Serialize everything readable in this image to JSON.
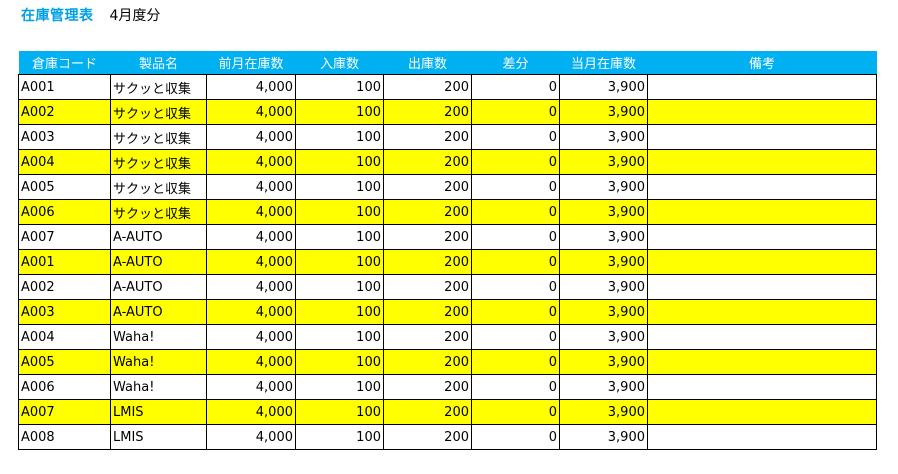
{
  "sheet": {
    "title": "在庫管理表",
    "period": "4月度分"
  },
  "colors": {
    "title": "#00a0e9",
    "header_bg": "#00b0f0",
    "stripe": "#ffff00",
    "grid": "#000000"
  },
  "table": {
    "headers": [
      "倉庫コード",
      "製品名",
      "前月在庫数",
      "入庫数",
      "出庫数",
      "差分",
      "当月在庫数",
      "備考"
    ],
    "rows": [
      [
        "A001",
        "サクッと収集",
        "4,000",
        "100",
        "200",
        "0",
        "3,900",
        ""
      ],
      [
        "A002",
        "サクッと収集",
        "4,000",
        "100",
        "200",
        "0",
        "3,900",
        ""
      ],
      [
        "A003",
        "サクッと収集",
        "4,000",
        "100",
        "200",
        "0",
        "3,900",
        ""
      ],
      [
        "A004",
        "サクッと収集",
        "4,000",
        "100",
        "200",
        "0",
        "3,900",
        ""
      ],
      [
        "A005",
        "サクッと収集",
        "4,000",
        "100",
        "200",
        "0",
        "3,900",
        ""
      ],
      [
        "A006",
        "サクッと収集",
        "4,000",
        "100",
        "200",
        "0",
        "3,900",
        ""
      ],
      [
        "A007",
        "A-AUTO",
        "4,000",
        "100",
        "200",
        "0",
        "3,900",
        ""
      ],
      [
        "A001",
        "A-AUTO",
        "4,000",
        "100",
        "200",
        "0",
        "3,900",
        ""
      ],
      [
        "A002",
        "A-AUTO",
        "4,000",
        "100",
        "200",
        "0",
        "3,900",
        ""
      ],
      [
        "A003",
        "A-AUTO",
        "4,000",
        "100",
        "200",
        "0",
        "3,900",
        ""
      ],
      [
        "A004",
        "Waha!",
        "4,000",
        "100",
        "200",
        "0",
        "3,900",
        ""
      ],
      [
        "A005",
        "Waha!",
        "4,000",
        "100",
        "200",
        "0",
        "3,900",
        ""
      ],
      [
        "A006",
        "Waha!",
        "4,000",
        "100",
        "200",
        "0",
        "3,900",
        ""
      ],
      [
        "A007",
        "LMIS",
        "4,000",
        "100",
        "200",
        "0",
        "3,900",
        ""
      ],
      [
        "A008",
        "LMIS",
        "4,000",
        "100",
        "200",
        "0",
        "3,900",
        ""
      ]
    ]
  }
}
